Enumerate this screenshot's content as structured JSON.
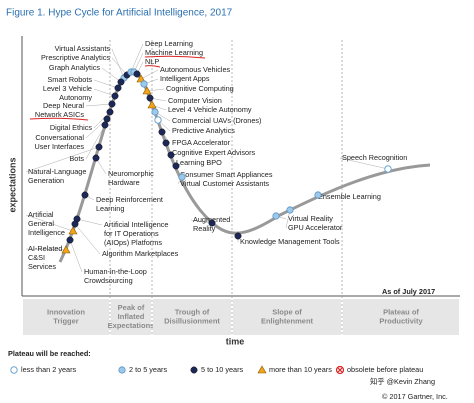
{
  "title": "Figure 1. Hype Cycle for Artificial Intelligence, 2017",
  "y_axis_label": "expectations",
  "x_axis_label": "time",
  "phases": [
    [
      "Innovation",
      "Trigger"
    ],
    [
      "Peak of",
      "Inflated",
      "Expectations"
    ],
    [
      "Trough of",
      "Disillusionment"
    ],
    [
      "Slope of",
      "Enlightenment"
    ],
    [
      "Plateau of",
      "Productivity"
    ]
  ],
  "as_of": "As of July 2017",
  "legend": {
    "title": "Plateau will be reached:",
    "items": [
      "less than 2 years",
      "2 to 5 years",
      "5 to 10 years",
      "more than 10 years",
      "obsolete before plateau"
    ]
  },
  "nodes": [
    {
      "label": [
        "Virtual Assistants"
      ],
      "plateau": "2 to 5 years"
    },
    {
      "label": [
        "Prescriptive Analytics"
      ],
      "plateau": "5 to 10 years"
    },
    {
      "label": [
        "Graph Analytics"
      ],
      "plateau": "5 to 10 years"
    },
    {
      "label": [
        "Smart Robots"
      ],
      "plateau": "5 to 10 years"
    },
    {
      "label": [
        "Level 3 Vehicle",
        "Autonomy"
      ],
      "plateau": "5 to 10 years"
    },
    {
      "label": [
        "Deep Neural",
        "Network ASICs"
      ],
      "plateau": "5 to 10 years"
    },
    {
      "label": [
        "Digital Ethics"
      ],
      "plateau": "5 to 10 years"
    },
    {
      "label": [
        "Conversational",
        "User Interfaces"
      ],
      "plateau": "5 to 10 years"
    },
    {
      "label": [
        "Bots"
      ],
      "plateau": "5 to 10 years"
    },
    {
      "label": [
        "Natural-Language",
        "Generation"
      ],
      "plateau": "5 to 10 years"
    },
    {
      "label": [
        "Artificial",
        "General",
        "Intelligence"
      ],
      "plateau": "more than 10 years"
    },
    {
      "label": [
        "AI-Related",
        "C&SI",
        "Services"
      ],
      "plateau": "more than 10 years"
    },
    {
      "label": [
        "Deep Learning"
      ],
      "plateau": "2 to 5 years"
    },
    {
      "label": [
        "Machine Learning"
      ],
      "plateau": "2 to 5 years"
    },
    {
      "label": [
        "NLP"
      ],
      "plateau": "5 to 10 years"
    },
    {
      "label": [
        "Autonomous Vehicles"
      ],
      "plateau": "more than 10 years"
    },
    {
      "label": [
        "Intelligent Apps"
      ],
      "plateau": "2 to 5 years"
    },
    {
      "label": [
        "Cognitive Computing"
      ],
      "plateau": "more than 10 years"
    },
    {
      "label": [
        "Computer Vision"
      ],
      "plateau": "5 to 10 years"
    },
    {
      "label": [
        "Level 4 Vehicle Autonomy"
      ],
      "plateau": "more than 10 years"
    },
    {
      "label": [
        "Commercial UAVs (Drones)"
      ],
      "plateau": "2 to 5 years"
    },
    {
      "label": [
        "Predictive Analytics"
      ],
      "plateau": "less than 2 years"
    },
    {
      "label": [
        "FPGA Accelerator"
      ],
      "plateau": "5 to 10 years"
    },
    {
      "label": [
        "Cognitive Expert Advisors"
      ],
      "plateau": "5 to 10 years"
    },
    {
      "label": [
        "Learning BPO"
      ],
      "plateau": "5 to 10 years"
    },
    {
      "label": [
        "Consumer Smart Appliances"
      ],
      "plateau": "5 to 10 years"
    },
    {
      "label": [
        "Virtual Customer Assistants"
      ],
      "plateau": "2 to 5 years"
    },
    {
      "label": [
        "Neuromorphic",
        "Hardware"
      ],
      "plateau": "5 to 10 years"
    },
    {
      "label": [
        "Deep Reinforcement",
        "Learning"
      ],
      "plateau": "5 to 10 years"
    },
    {
      "label": [
        "Artificial Intelligence",
        "for IT Operations",
        "(AIOps) Platforms"
      ],
      "plateau": "5 to 10 years"
    },
    {
      "label": [
        "Algorithm Marketplaces"
      ],
      "plateau": "5 to 10 years"
    },
    {
      "label": [
        "Human-in-the-Loop",
        "Crowdsourcing"
      ],
      "plateau": "5 to 10 years"
    },
    {
      "label": [
        "Augmented",
        "Reality"
      ],
      "plateau": "5 to 10 years"
    },
    {
      "label": [
        "Knowledge Management Tools"
      ],
      "plateau": "5 to 10 years"
    },
    {
      "label": [
        "Virtual Reality"
      ],
      "plateau": "2 to 5 years"
    },
    {
      "label": [
        "GPU Accelerator"
      ],
      "plateau": "2 to 5 years"
    },
    {
      "label": [
        "Ensemble Learning"
      ],
      "plateau": "2 to 5 years"
    },
    {
      "label": [
        "Speech Recognition"
      ],
      "plateau": "less than 2 years"
    }
  ],
  "copyright": "© 2017 Gartner, Inc.",
  "watermark": "知乎 @Kevin Zhang"
}
